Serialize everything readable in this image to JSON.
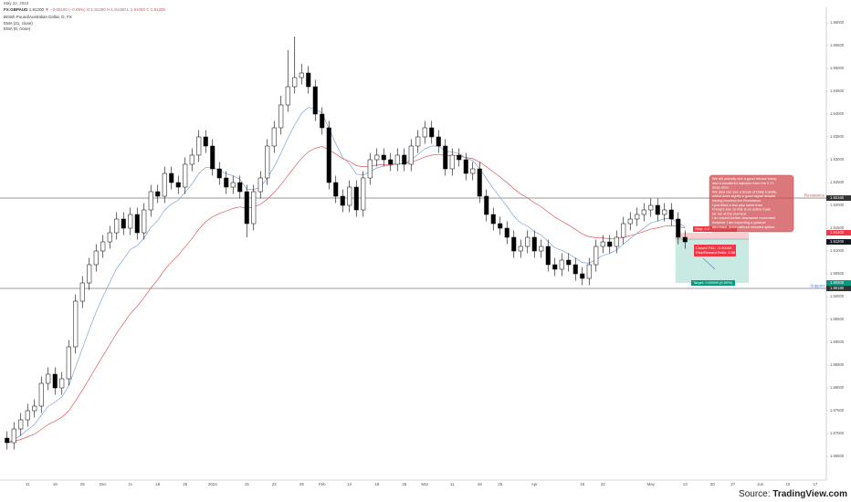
{
  "chart_data": {
    "type": "candlestick",
    "date": "May 22, 2024",
    "header": {
      "symbol": "FX:GBPAUD",
      "last": "1.91200",
      "change": "▼ −0.00100 (−0.05%)",
      "ohlc": "O:1.91300 H:1.91450 L:1.91050 C:1.91200"
    },
    "title": "British Pound/Australian Dollar, D, FX",
    "indicators": [
      {
        "name": "EMA (21, close)",
        "period": 21,
        "color": "#e0575c"
      },
      {
        "name": "EMA (8, close)",
        "period": 8,
        "color": "#7fa3d6"
      }
    ],
    "categories": [
      null,
      null,
      null,
      "11",
      null,
      null,
      null,
      "18",
      null,
      null,
      null,
      "25",
      null,
      null,
      "Dec",
      null,
      null,
      null,
      "11",
      null,
      null,
      null,
      "18",
      null,
      null,
      null,
      "25",
      null,
      null,
      null,
      "2024",
      null,
      null,
      null,
      null,
      "15",
      null,
      null,
      null,
      "22",
      null,
      null,
      null,
      "29",
      null,
      null,
      "Feb",
      null,
      null,
      null,
      "12",
      null,
      null,
      null,
      "19",
      null,
      null,
      null,
      "26",
      null,
      null,
      "Mar",
      null,
      null,
      null,
      "11",
      null,
      null,
      null,
      "18",
      null,
      null,
      "25",
      null,
      null,
      null,
      null,
      "Apr",
      null,
      null,
      null,
      null,
      null,
      null,
      "15",
      null,
      null,
      "22",
      null,
      null,
      null,
      null,
      null,
      null,
      "May",
      null,
      null,
      null,
      null,
      "13",
      null,
      null,
      null,
      "20",
      null,
      null,
      "27",
      null,
      null,
      null,
      "Jun",
      null,
      null,
      null,
      "10",
      null,
      null,
      null,
      "17",
      null
    ],
    "open": [
      1.869,
      1.868,
      1.871,
      1.873,
      1.875,
      1.876,
      1.881,
      1.883,
      1.88,
      1.882,
      1.889,
      1.899,
      1.903,
      1.907,
      1.91,
      1.912,
      1.914,
      1.917,
      1.915,
      1.918,
      1.914,
      1.919,
      1.923,
      1.922,
      1.927,
      1.925,
      1.924,
      1.929,
      1.931,
      1.935,
      1.933,
      1.928,
      1.926,
      1.924,
      1.925,
      1.923,
      1.916,
      1.923,
      1.926,
      1.933,
      1.937,
      1.942,
      1.946,
      1.948,
      1.949,
      1.946,
      1.94,
      1.937,
      1.925,
      1.922,
      1.92,
      1.924,
      1.919,
      1.926,
      1.93,
      1.931,
      1.93,
      1.929,
      1.931,
      1.929,
      1.933,
      1.935,
      1.937,
      1.935,
      1.933,
      1.928,
      1.931,
      1.93,
      1.927,
      1.928,
      1.922,
      1.918,
      1.916,
      1.915,
      1.913,
      1.91,
      1.911,
      1.913,
      1.91,
      1.911,
      1.907,
      1.906,
      1.908,
      1.907,
      1.905,
      1.904,
      1.907,
      1.911,
      1.912,
      1.911,
      1.913,
      1.916,
      1.917,
      1.918,
      1.919,
      1.92,
      1.918,
      1.919,
      1.917,
      1.913,
      null,
      null,
      null,
      null,
      null,
      null,
      null,
      null,
      null,
      null,
      null,
      null,
      null,
      null,
      null,
      null,
      null,
      null,
      null,
      null
    ],
    "high": [
      1.8705,
      1.8725,
      1.8745,
      1.8765,
      1.8775,
      1.8825,
      1.8845,
      1.8845,
      1.8835,
      1.8905,
      1.9005,
      1.9045,
      1.9085,
      1.9115,
      1.9135,
      1.9155,
      1.9185,
      1.9185,
      1.9195,
      1.9195,
      1.9205,
      1.9245,
      1.9245,
      1.9285,
      1.9285,
      1.9265,
      1.9305,
      1.9325,
      1.9365,
      1.9365,
      1.9345,
      1.9295,
      1.9275,
      1.9265,
      1.9265,
      1.9245,
      1.9245,
      1.9275,
      1.9345,
      1.9385,
      1.944,
      1.954,
      1.957,
      1.951,
      1.9505,
      1.9475,
      1.9415,
      1.9385,
      1.9265,
      1.9235,
      1.9255,
      1.9255,
      1.9275,
      1.9315,
      1.9325,
      1.9325,
      1.9315,
      1.9325,
      1.9325,
      1.9345,
      1.9365,
      1.9385,
      1.9385,
      1.9365,
      1.9345,
      1.9325,
      1.9325,
      1.9315,
      1.9295,
      1.9295,
      1.9235,
      1.9195,
      1.9175,
      1.9165,
      1.9145,
      1.9125,
      1.9145,
      1.9145,
      1.9125,
      1.9125,
      1.9085,
      1.9095,
      1.9095,
      1.9085,
      1.9065,
      1.9085,
      1.9125,
      1.9135,
      1.9135,
      1.9145,
      1.9175,
      1.9185,
      1.9195,
      1.9205,
      1.9215,
      1.9215,
      1.9205,
      1.9205,
      1.9185,
      1.9145,
      null,
      null,
      null,
      null,
      null,
      null,
      null,
      null,
      null,
      null,
      null,
      null,
      null,
      null,
      null,
      null,
      null,
      null,
      null,
      null
    ],
    "low": [
      1.8665,
      1.8665,
      1.8695,
      1.8715,
      1.8735,
      1.8745,
      1.8795,
      1.8785,
      1.8785,
      1.8805,
      1.8875,
      1.8975,
      1.9015,
      1.9055,
      1.9085,
      1.9105,
      1.9125,
      1.9135,
      1.9135,
      1.9125,
      1.9125,
      1.9175,
      1.9205,
      1.9205,
      1.9235,
      1.9225,
      1.9225,
      1.9275,
      1.9295,
      1.9315,
      1.9265,
      1.9245,
      1.9225,
      1.9225,
      1.9215,
      1.913,
      1.9145,
      1.9215,
      1.9245,
      1.9315,
      1.9355,
      1.9405,
      1.9445,
      1.9465,
      1.9445,
      1.9385,
      1.9355,
      1.9235,
      1.9205,
      1.9185,
      1.9185,
      1.9175,
      1.9175,
      1.9245,
      1.9285,
      1.9285,
      1.9275,
      1.9275,
      1.9275,
      1.9275,
      1.9315,
      1.9335,
      1.9335,
      1.9315,
      1.9265,
      1.9265,
      1.9285,
      1.9255,
      1.9255,
      1.9205,
      1.9165,
      1.9145,
      1.9135,
      1.9115,
      1.9085,
      1.9085,
      1.9095,
      1.9085,
      1.9085,
      1.9055,
      1.9045,
      1.9045,
      1.9055,
      1.9035,
      1.9025,
      1.9025,
      1.9055,
      1.9095,
      1.9095,
      1.9095,
      1.9115,
      1.9145,
      1.9155,
      1.9165,
      1.9175,
      1.9165,
      1.9165,
      1.9155,
      1.9115,
      1.9105,
      null,
      null,
      null,
      null,
      null,
      null,
      null,
      null,
      null,
      null,
      null,
      null,
      null,
      null,
      null,
      null,
      null,
      null,
      null,
      null
    ],
    "close": [
      1.868,
      1.871,
      1.873,
      1.875,
      1.876,
      1.881,
      1.883,
      1.88,
      1.882,
      1.889,
      1.899,
      1.903,
      1.907,
      1.91,
      1.912,
      1.914,
      1.917,
      1.915,
      1.918,
      1.914,
      1.919,
      1.923,
      1.922,
      1.927,
      1.925,
      1.924,
      1.929,
      1.931,
      1.935,
      1.933,
      1.928,
      1.926,
      1.924,
      1.925,
      1.923,
      1.916,
      1.923,
      1.926,
      1.933,
      1.937,
      1.942,
      1.946,
      1.948,
      1.949,
      1.946,
      1.94,
      1.937,
      1.925,
      1.922,
      1.92,
      1.924,
      1.919,
      1.926,
      1.93,
      1.931,
      1.93,
      1.929,
      1.931,
      1.929,
      1.933,
      1.935,
      1.937,
      1.935,
      1.933,
      1.928,
      1.931,
      1.93,
      1.927,
      1.928,
      1.922,
      1.918,
      1.916,
      1.915,
      1.913,
      1.91,
      1.911,
      1.913,
      1.91,
      1.911,
      1.907,
      1.906,
      1.908,
      1.907,
      1.905,
      1.904,
      1.907,
      1.911,
      1.912,
      1.911,
      1.913,
      1.916,
      1.917,
      1.918,
      1.919,
      1.92,
      1.918,
      1.919,
      1.917,
      1.913,
      1.912,
      null,
      null,
      null,
      null,
      null,
      null,
      null,
      null,
      null,
      null,
      null,
      null,
      null,
      null,
      null,
      null,
      null,
      null,
      null,
      null
    ],
    "ylim": [
      1.86,
      1.963
    ],
    "yticks": [
      {
        "value": 1.865,
        "label": "1.86500"
      },
      {
        "value": 1.87,
        "label": "1.87000"
      },
      {
        "value": 1.875,
        "label": "1.87500"
      },
      {
        "value": 1.88,
        "label": "1.88000"
      },
      {
        "value": 1.885,
        "label": "1.88500"
      },
      {
        "value": 1.89,
        "label": "1.89000"
      },
      {
        "value": 1.895,
        "label": "1.89500"
      },
      {
        "value": 1.9,
        "label": "1.90000"
      },
      {
        "value": 1.905,
        "label": "1.90500"
      },
      {
        "value": 1.91,
        "label": "1.91000"
      },
      {
        "value": 1.915,
        "label": "1.91500"
      },
      {
        "value": 1.92,
        "label": "1.92000"
      },
      {
        "value": 1.925,
        "label": "1.92500"
      },
      {
        "value": 1.93,
        "label": "1.93000"
      },
      {
        "value": 1.935,
        "label": "1.93500"
      },
      {
        "value": 1.94,
        "label": "1.94000"
      },
      {
        "value": 1.945,
        "label": "1.94500"
      },
      {
        "value": 1.95,
        "label": "1.95000"
      },
      {
        "value": 1.955,
        "label": "1.95500"
      },
      {
        "value": 1.96,
        "label": "1.96000"
      }
    ],
    "levels": [
      {
        "name": "Resistance",
        "price": 1.9216,
        "price_label": "1.92160",
        "color": "#d9534f"
      },
      {
        "name": "Support",
        "price": 1.9018,
        "price_label": "1.90180",
        "color": "#5b7fc7"
      }
    ],
    "position": {
      "entry": 1.9126,
      "stop": 1.914,
      "target": 1.903,
      "stop_label": "Stop: 0.00140 (0.07%)",
      "stop_price": "1.91400",
      "target_label": "Target: 0.00960 (0.50%)",
      "target_price": "1.90300",
      "pnl": [
        "Closed P&L: -0.00060",
        "Risk/Reward Ratio: 6.86"
      ]
    },
    "note": [
      "We did actually see a good retrace today",
      "and a wonderful rejection from the 0.71",
      "deep area.",
      "We also can see a break of Daily Candle,",
      "which does signify a good signal despite",
      "having touched the Resistance.",
      "I just filled a few pips lower than",
      "Friday's low, so this is an active trade",
      "for me at the moment.",
      "I do expect further downward movement",
      "however I am expecting a gradual",
      "decrease, down without retested spikes."
    ],
    "source": {
      "prefix": "Source:",
      "name": "TradingView.com"
    }
  }
}
